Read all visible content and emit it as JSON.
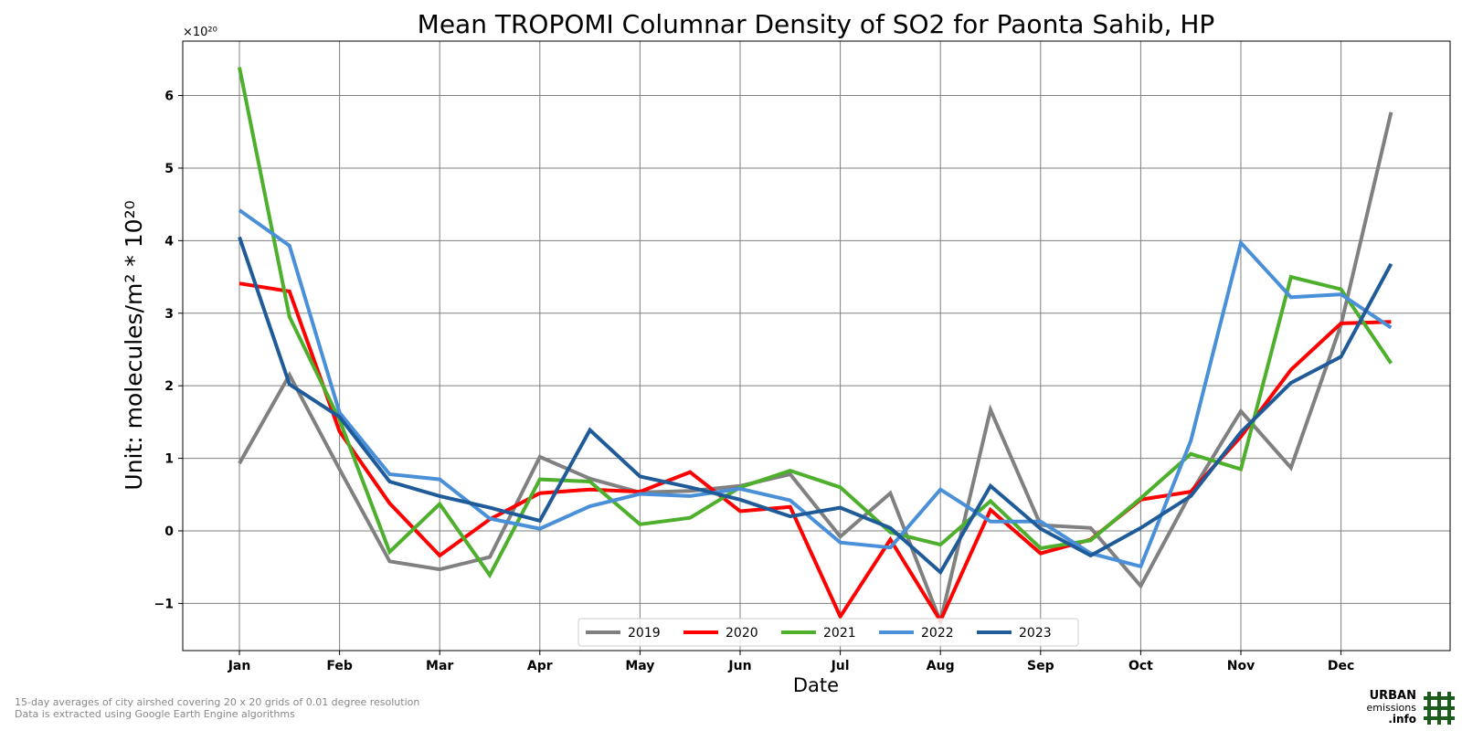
{
  "chart_data": {
    "type": "line",
    "title": "Mean TROPOMI Columnar Density of SO2 for Paonta Sahib, HP",
    "xlabel": "Date",
    "ylabel": "Unit: molecules/m² * 10²⁰",
    "y_multiplier_label": "×10²⁰",
    "ylim": [
      -1.65,
      6.75
    ],
    "yticks": [
      -1,
      0,
      1,
      2,
      3,
      4,
      5,
      6
    ],
    "ytick_labels": [
      "−1",
      "0",
      "1",
      "2",
      "3",
      "4",
      "5",
      "6"
    ],
    "x_tick_labels": [
      "Jan",
      "Feb",
      "Mar",
      "Apr",
      "May",
      "Jun",
      "Jul",
      "Aug",
      "Sep",
      "Oct",
      "Nov",
      "Dec"
    ],
    "x": [
      "Jan 1",
      "Jan 16",
      "Feb 1",
      "Feb 16",
      "Mar 1",
      "Mar 16",
      "Apr 1",
      "Apr 16",
      "May 1",
      "May 16",
      "Jun 1",
      "Jun 16",
      "Jul 1",
      "Jul 16",
      "Aug 1",
      "Aug 16",
      "Sep 1",
      "Sep 16",
      "Oct 1",
      "Oct 16",
      "Nov 1",
      "Nov 16",
      "Dec 1",
      "Dec 16"
    ],
    "grid": true,
    "legend_position": "bottom-center",
    "series": [
      {
        "name": "2019",
        "color": "#808080",
        "values": [
          0.93,
          2.15,
          0.85,
          -0.42,
          -0.53,
          -0.36,
          1.02,
          0.72,
          0.53,
          0.55,
          0.62,
          0.78,
          -0.08,
          0.52,
          -1.25,
          1.67,
          0.08,
          0.04,
          -0.76,
          0.52,
          1.65,
          0.87,
          2.84,
          5.77
        ]
      },
      {
        "name": "2020",
        "color": "#ff0000",
        "values": [
          3.41,
          3.3,
          1.37,
          0.38,
          -0.34,
          0.16,
          0.52,
          0.57,
          0.54,
          0.81,
          0.27,
          0.33,
          -1.18,
          -0.12,
          -1.24,
          0.29,
          -0.31,
          -0.12,
          0.43,
          0.54,
          1.3,
          2.22,
          2.86,
          2.88
        ]
      },
      {
        "name": "2021",
        "color": "#4daf2b",
        "values": [
          6.39,
          2.95,
          1.53,
          -0.29,
          0.37,
          -0.61,
          0.71,
          0.68,
          0.09,
          0.18,
          0.6,
          0.83,
          0.6,
          -0.02,
          -0.19,
          0.41,
          -0.24,
          -0.13,
          0.45,
          1.06,
          0.85,
          3.5,
          3.33,
          2.31
        ]
      },
      {
        "name": "2022",
        "color": "#4a90d9",
        "values": [
          4.42,
          3.93,
          1.63,
          0.78,
          0.71,
          0.17,
          0.03,
          0.34,
          0.51,
          0.48,
          0.58,
          0.42,
          -0.16,
          -0.23,
          0.57,
          0.13,
          0.13,
          -0.31,
          -0.49,
          1.24,
          3.97,
          3.22,
          3.26,
          2.8
        ]
      },
      {
        "name": "2023",
        "color": "#1f5b99",
        "values": [
          4.05,
          2.02,
          1.57,
          0.68,
          0.48,
          0.32,
          0.14,
          1.39,
          0.75,
          0.6,
          0.43,
          0.2,
          0.32,
          0.04,
          -0.57,
          0.62,
          0.03,
          -0.34,
          0.04,
          0.48,
          1.36,
          2.04,
          2.4,
          3.68
        ]
      }
    ]
  },
  "footnote": {
    "line1": "15-day averages of city airshed covering 20 x 20 grids of 0.01 degree resolution",
    "line2": "Data is extracted using Google Earth Engine algorithms"
  },
  "logo": {
    "line1": "URBAN",
    "line2": "emissions",
    "line3": ".info",
    "color": "#1e5c1e"
  }
}
